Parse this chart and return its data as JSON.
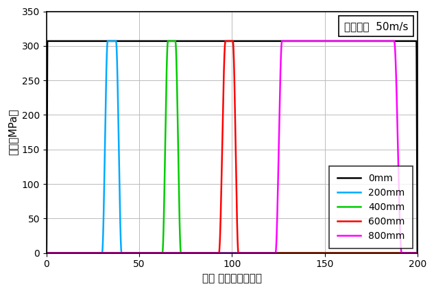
{
  "xlabel": "時刻 （マイクロ秒）",
  "ylabel": "圧力（MPa）",
  "xlim": [
    0,
    200
  ],
  "ylim": [
    0,
    350
  ],
  "xticks": [
    0,
    50,
    100,
    150,
    200
  ],
  "yticks": [
    0,
    50,
    100,
    150,
    200,
    250,
    300,
    350
  ],
  "pressure_value": 307,
  "series": [
    {
      "label": "0mm",
      "color": "#000000",
      "rise_start": 0.0,
      "rise_end": 0.5,
      "fall_start": 199.5,
      "fall_end": 200.0
    },
    {
      "label": "200mm",
      "color": "#00AAFF",
      "rise_start": 30.0,
      "rise_end": 33.0,
      "fall_start": 37.5,
      "fall_end": 40.5
    },
    {
      "label": "400mm",
      "color": "#00CC00",
      "rise_start": 62.5,
      "rise_end": 65.5,
      "fall_start": 69.5,
      "fall_end": 72.5
    },
    {
      "label": "600mm",
      "color": "#FF0000",
      "rise_start": 93.0,
      "rise_end": 96.5,
      "fall_start": 100.5,
      "fall_end": 103.5
    },
    {
      "label": "800mm",
      "color": "#FF00FF",
      "rise_start": 123.5,
      "rise_end": 127.0,
      "fall_start": 187.5,
      "fall_end": 191.5
    }
  ],
  "annotation_box_text": "衝突速度  50m/s",
  "background_color": "#ffffff",
  "grid_color": "#bbbbbb",
  "linewidth": 1.8,
  "annotation_fontsize": 11,
  "label_fontsize": 11,
  "tick_fontsize": 10,
  "legend_fontsize": 10
}
